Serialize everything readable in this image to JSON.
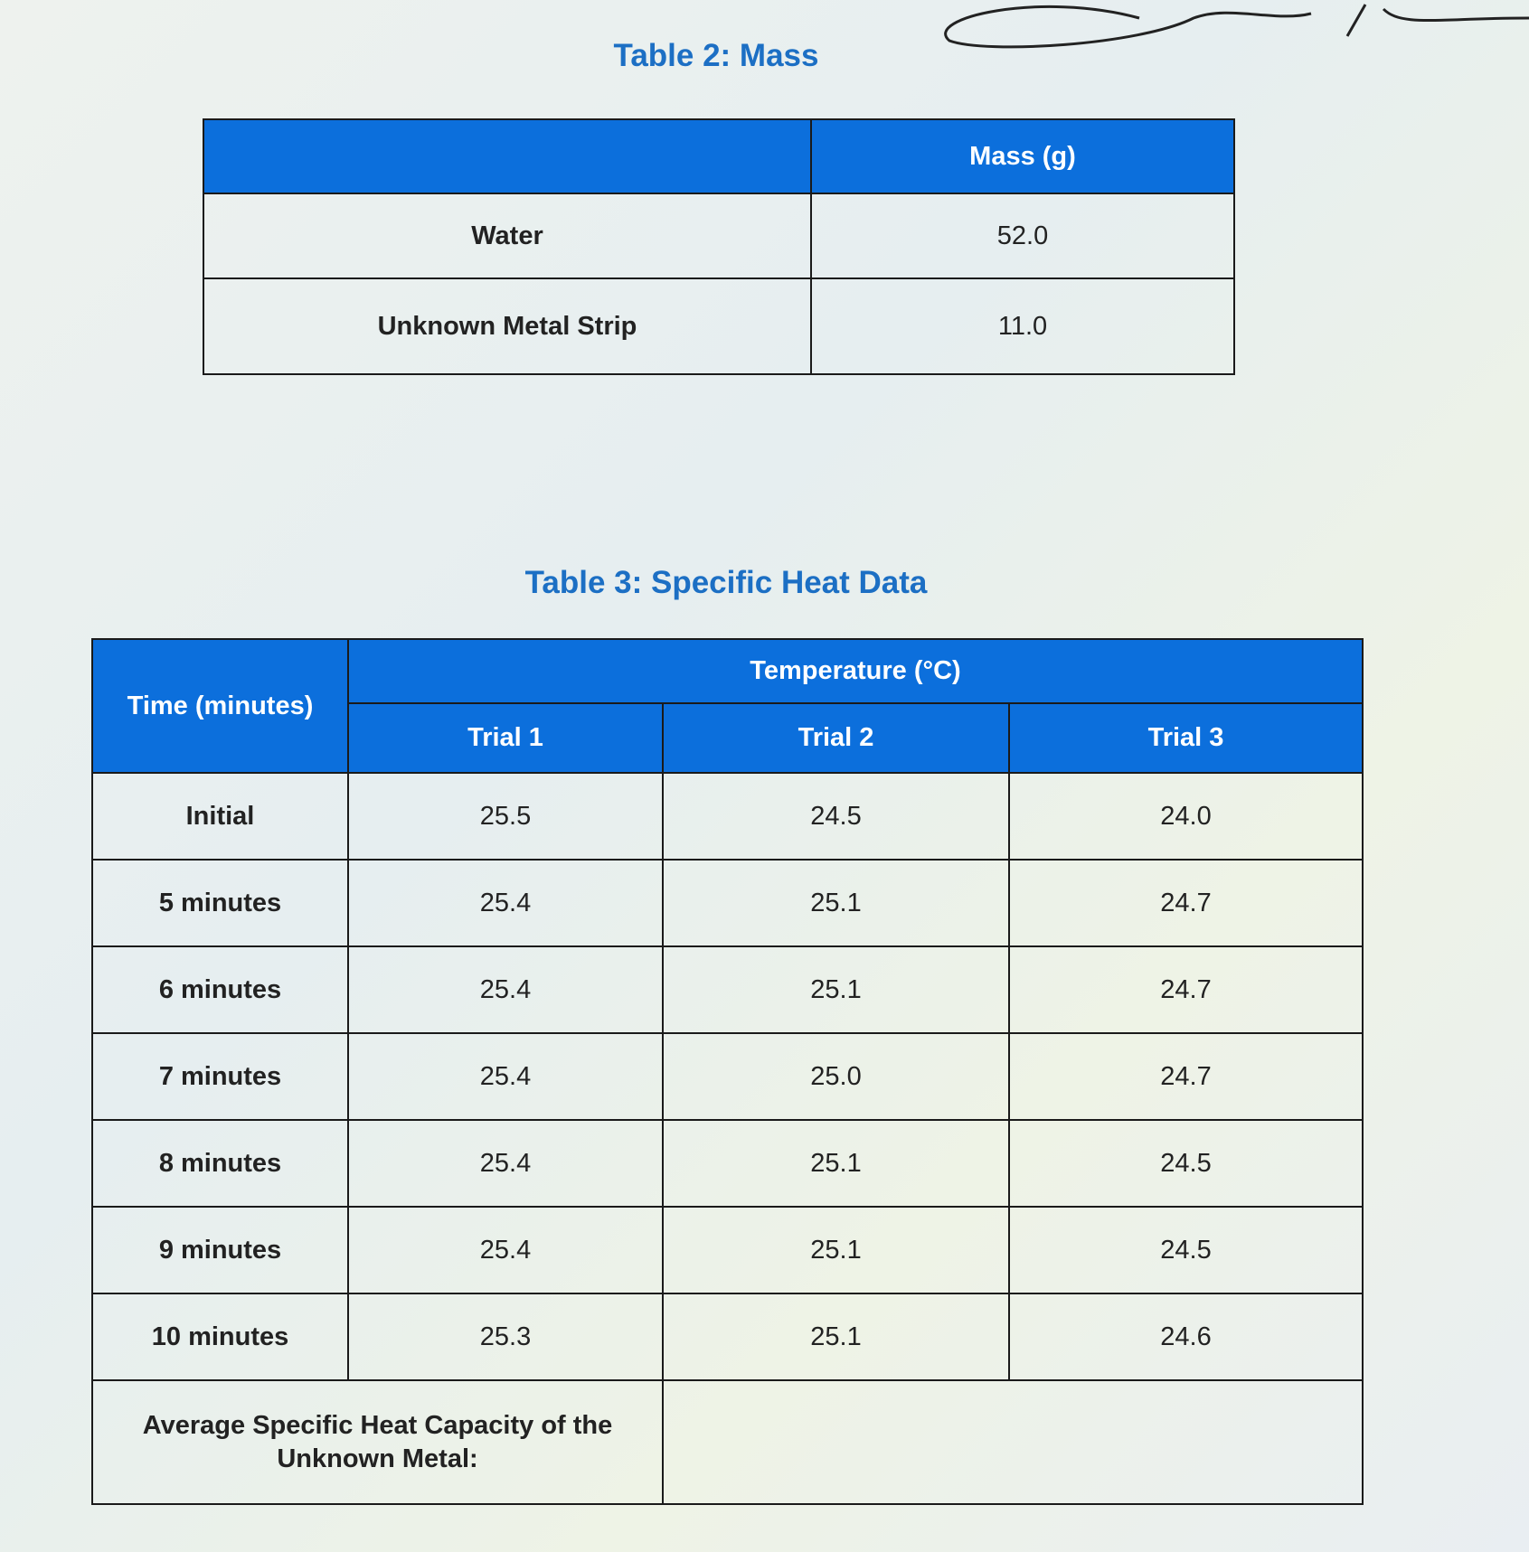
{
  "table2": {
    "title": "Table 2: Mass",
    "header": [
      "Mass (g)"
    ],
    "rows": [
      [
        "Water",
        "52.0"
      ],
      [
        "Unknown Metal Strip",
        "11.0"
      ]
    ]
  },
  "table3": {
    "title": "Table 3: Specific Heat Data",
    "header": {
      "time": "Time (minutes)",
      "temperature": "Temperature (°C)",
      "trials": [
        "Trial 1",
        "Trial 2",
        "Trial 3"
      ]
    },
    "rows": [
      [
        "Initial",
        "25.5",
        "24.5",
        "24.0"
      ],
      [
        "5 minutes",
        "25.4",
        "25.1",
        "24.7"
      ],
      [
        "6 minutes",
        "25.4",
        "25.1",
        "24.7"
      ],
      [
        "7 minutes",
        "25.4",
        "25.0",
        "24.7"
      ],
      [
        "8 minutes",
        "25.4",
        "25.1",
        "24.5"
      ],
      [
        "9 minutes",
        "25.4",
        "25.1",
        "24.5"
      ],
      [
        "10 minutes",
        "25.3",
        "25.1",
        "24.6"
      ]
    ],
    "footer": "Average Specific Heat Capacity of the Unknown Metal:"
  }
}
